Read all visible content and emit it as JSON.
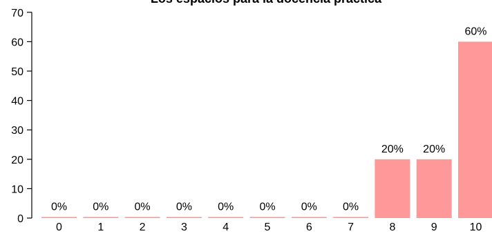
{
  "chart_data": {
    "type": "bar",
    "title": "Los espacios para la docencia práctica",
    "categories": [
      "0",
      "1",
      "2",
      "3",
      "4",
      "5",
      "6",
      "7",
      "8",
      "9",
      "10"
    ],
    "values": [
      0,
      0,
      0,
      0,
      0,
      0,
      0,
      0,
      20,
      20,
      60
    ],
    "data_labels": [
      "0%",
      "0%",
      "0%",
      "0%",
      "0%",
      "0%",
      "0%",
      "0%",
      "20%",
      "20%",
      "60%"
    ],
    "xlabel": "",
    "ylabel": "",
    "ylim": [
      0,
      70
    ],
    "yticks": [
      "0",
      "10",
      "20",
      "30",
      "40",
      "50",
      "60",
      "70"
    ],
    "grid": false,
    "bar_color": "#ff9999"
  }
}
